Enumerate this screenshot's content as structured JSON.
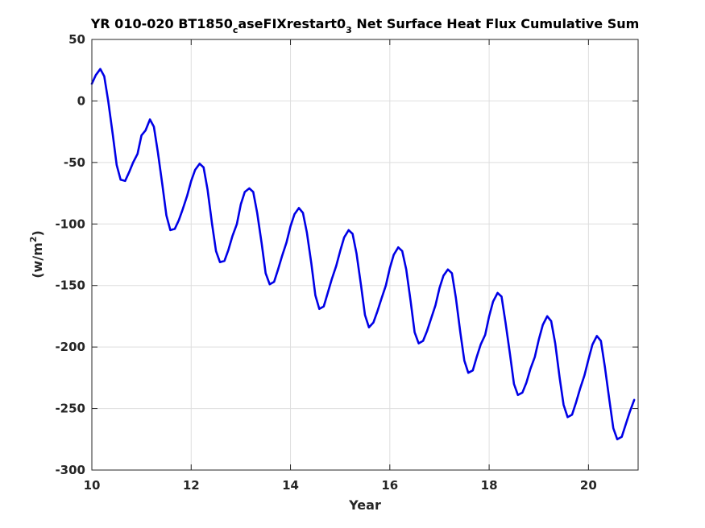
{
  "chart_data": {
    "type": "line",
    "title": {
      "prefix": "YR 010-020 BT1850",
      "sub1": "c",
      "middle": "aseFIXrestart0",
      "sub2": "3",
      "suffix": " Net Surface Heat Flux  Cumulative Sum"
    },
    "xlabel": "Year",
    "ylabel": {
      "prefix": "(w/m",
      "sup": "2",
      "suffix": ")"
    },
    "xlim": [
      10,
      21
    ],
    "ylim": [
      -300,
      50
    ],
    "xticks": [
      10,
      12,
      14,
      16,
      18,
      20
    ],
    "xtick_labels": [
      "10",
      "12",
      "14",
      "16",
      "18",
      "20"
    ],
    "yticks": [
      50,
      0,
      -50,
      -100,
      -150,
      -200,
      -250,
      -300
    ],
    "ytick_labels": [
      "50",
      "0",
      "-50",
      "-100",
      "-150",
      "-200",
      "-250",
      "-300"
    ],
    "grid": true,
    "line_color": "#0000e6",
    "series": [
      {
        "x": [
          10.0,
          10.08,
          10.17,
          10.25,
          10.33,
          10.42,
          10.5,
          10.58,
          10.67,
          10.75,
          10.83,
          10.92,
          11.0,
          11.08,
          11.17,
          11.25,
          11.33,
          11.42,
          11.5,
          11.58,
          11.67,
          11.75,
          11.83,
          11.92,
          12.0,
          12.08,
          12.17,
          12.25,
          12.33,
          12.42,
          12.5,
          12.58,
          12.67,
          12.75,
          12.83,
          12.92,
          13.0,
          13.08,
          13.17,
          13.25,
          13.33,
          13.42,
          13.5,
          13.58,
          13.67,
          13.75,
          13.83,
          13.92,
          14.0,
          14.08,
          14.17,
          14.25,
          14.33,
          14.42,
          14.5,
          14.58,
          14.67,
          14.75,
          14.83,
          14.92,
          15.0,
          15.08,
          15.17,
          15.25,
          15.33,
          15.42,
          15.5,
          15.58,
          15.67,
          15.75,
          15.83,
          15.92,
          16.0,
          16.08,
          16.17,
          16.25,
          16.33,
          16.42,
          16.5,
          16.58,
          16.67,
          16.75,
          16.83,
          16.92,
          17.0,
          17.08,
          17.17,
          17.25,
          17.33,
          17.42,
          17.5,
          17.58,
          17.67,
          17.75,
          17.83,
          17.92,
          18.0,
          18.08,
          18.17,
          18.25,
          18.33,
          18.42,
          18.5,
          18.58,
          18.67,
          18.75,
          18.83,
          18.92,
          19.0,
          19.08,
          19.17,
          19.25,
          19.33,
          19.42,
          19.5,
          19.58,
          19.67,
          19.75,
          19.83,
          19.92,
          20.0,
          20.08,
          20.17,
          20.25,
          20.33,
          20.42,
          20.5,
          20.58,
          20.67,
          20.75,
          20.83,
          20.92
        ],
        "y": [
          14,
          21,
          26,
          20,
          0,
          -27,
          -52,
          -64,
          -65,
          -58,
          -50,
          -43,
          -28,
          -24,
          -15,
          -21,
          -42,
          -68,
          -93,
          -105,
          -104,
          -97,
          -88,
          -77,
          -65,
          -56,
          -51,
          -54,
          -72,
          -100,
          -122,
          -131,
          -130,
          -121,
          -110,
          -100,
          -84,
          -74,
          -71,
          -74,
          -91,
          -116,
          -140,
          -149,
          -147,
          -137,
          -126,
          -115,
          -102,
          -92,
          -87,
          -91,
          -107,
          -132,
          -158,
          -169,
          -167,
          -156,
          -145,
          -134,
          -122,
          -111,
          -105,
          -108,
          -124,
          -150,
          -174,
          -184,
          -180,
          -171,
          -161,
          -150,
          -136,
          -125,
          -119,
          -122,
          -137,
          -163,
          -188,
          -197,
          -195,
          -187,
          -177,
          -166,
          -152,
          -142,
          -137,
          -140,
          -160,
          -188,
          -211,
          -221,
          -219,
          -208,
          -198,
          -190,
          -175,
          -163,
          -156,
          -159,
          -180,
          -206,
          -230,
          -239,
          -237,
          -229,
          -218,
          -208,
          -194,
          -182,
          -175,
          -179,
          -197,
          -225,
          -247,
          -257,
          -255,
          -245,
          -234,
          -223,
          -210,
          -198,
          -191,
          -195,
          -216,
          -243,
          -266,
          -275,
          -273,
          -263,
          -253,
          -243
        ]
      }
    ]
  }
}
